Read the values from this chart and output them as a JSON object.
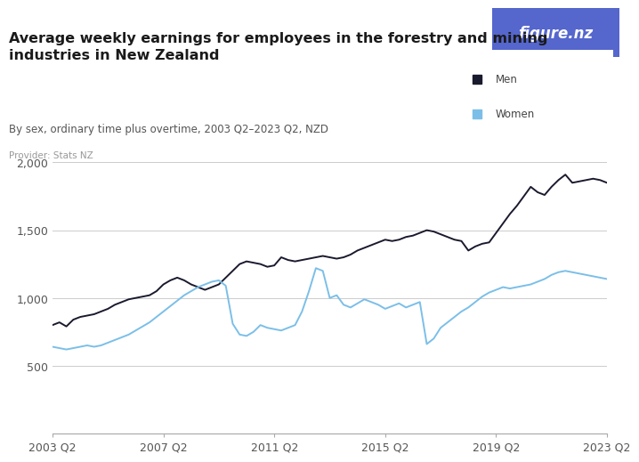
{
  "title": "Average weekly earnings for employees in the forestry and mining\nindustries in New Zealand",
  "subtitle": "By sex, ordinary time plus overtime, 2003 Q2–2023 Q2, NZD",
  "provider": "Provider: Stats NZ",
  "title_color": "#1a1a1a",
  "subtitle_color": "#555555",
  "provider_color": "#999999",
  "background_color": "#ffffff",
  "men_color": "#1a1a2e",
  "women_color": "#7bbfe8",
  "logo_bg_color": "#5566cc",
  "ylim": [
    0,
    2000
  ],
  "yticks": [
    0,
    500,
    1000,
    1500,
    2000
  ],
  "xtick_labels": [
    "2003 Q2",
    "2007 Q2",
    "2011 Q2",
    "2015 Q2",
    "2019 Q2",
    "2023 Q2"
  ],
  "xtick_positions": [
    0,
    16,
    32,
    48,
    64,
    80
  ],
  "men_values": [
    800,
    820,
    790,
    840,
    860,
    870,
    880,
    900,
    920,
    950,
    970,
    990,
    1000,
    1010,
    1020,
    1050,
    1100,
    1130,
    1150,
    1130,
    1100,
    1080,
    1060,
    1080,
    1100,
    1150,
    1200,
    1250,
    1270,
    1260,
    1250,
    1230,
    1240,
    1300,
    1280,
    1270,
    1280,
    1290,
    1300,
    1310,
    1300,
    1290,
    1300,
    1320,
    1350,
    1370,
    1390,
    1410,
    1430,
    1420,
    1430,
    1450,
    1460,
    1480,
    1500,
    1490,
    1470,
    1450,
    1430,
    1420,
    1350,
    1380,
    1400,
    1410,
    1480,
    1550,
    1620,
    1680,
    1750,
    1820,
    1780,
    1760,
    1820,
    1870,
    1910,
    1850,
    1860,
    1870,
    1880,
    1870,
    1850
  ],
  "women_values": [
    640,
    630,
    620,
    630,
    640,
    650,
    640,
    650,
    670,
    690,
    710,
    730,
    760,
    790,
    820,
    860,
    900,
    940,
    980,
    1020,
    1050,
    1080,
    1100,
    1120,
    1130,
    1090,
    810,
    730,
    720,
    750,
    800,
    780,
    770,
    760,
    780,
    800,
    900,
    1050,
    1220,
    1200,
    1000,
    1020,
    950,
    930,
    960,
    990,
    970,
    950,
    920,
    940,
    960,
    930,
    950,
    970,
    660,
    700,
    780,
    820,
    860,
    900,
    930,
    970,
    1010,
    1040,
    1060,
    1080,
    1070,
    1080,
    1090,
    1100,
    1120,
    1140,
    1170,
    1190,
    1200,
    1190,
    1180,
    1170,
    1160,
    1150,
    1140
  ]
}
